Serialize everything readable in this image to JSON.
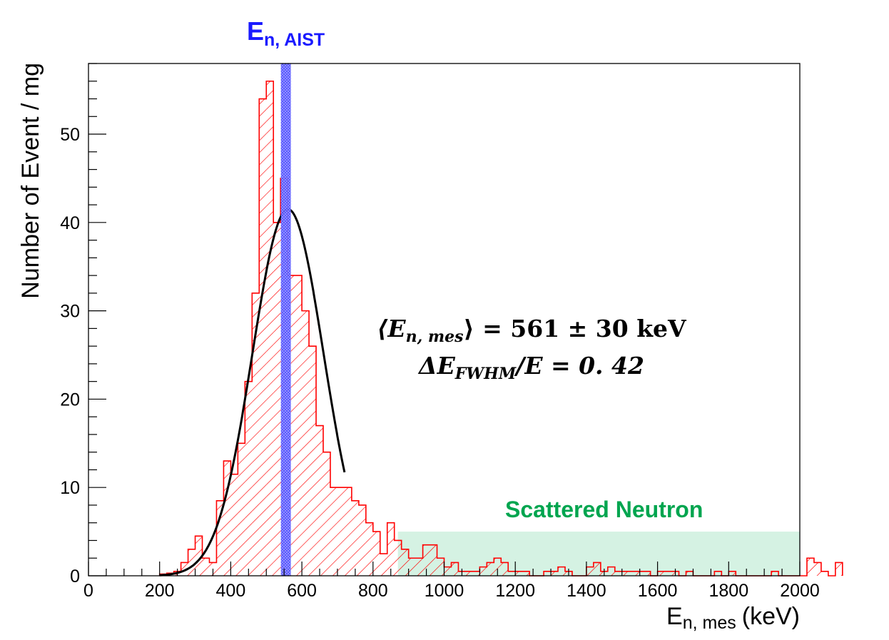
{
  "chart_data": {
    "type": "histogram",
    "xlabel": "E",
    "xlabel_sub": "n, mes",
    "xlabel_unit": "(keV)",
    "ylabel": "Number of Event / mg",
    "xlim": [
      0,
      2000
    ],
    "ylim": [
      0,
      58
    ],
    "x_ticks": [
      0,
      200,
      400,
      600,
      800,
      1000,
      1200,
      1400,
      1600,
      1800,
      2000
    ],
    "y_ticks": [
      0,
      10,
      20,
      30,
      40,
      50
    ],
    "bin_width": 20,
    "bins_start": 200,
    "histogram_values": [
      0.2,
      0.3,
      0.5,
      1.5,
      3,
      4.5,
      2,
      1.5,
      8.5,
      13,
      11.5,
      15,
      22,
      32,
      54,
      56,
      40,
      45,
      34,
      34,
      30,
      26,
      17,
      14,
      10,
      10,
      10,
      8.5,
      8,
      6,
      5,
      2.5,
      6,
      4,
      3,
      2,
      2,
      3.5,
      3.5,
      2,
      1,
      1.5,
      0.5,
      0.5,
      0.5,
      1,
      1.5,
      2,
      1.5,
      0.5,
      0.5,
      0.5,
      0,
      0,
      0.5,
      0.5,
      1,
      0.5,
      0,
      0,
      1,
      1.5,
      0.5,
      1,
      0.5,
      0.5,
      0.5,
      0.5,
      0.5,
      0,
      0.5,
      0.5,
      0.5,
      0,
      0.5,
      0,
      0,
      0,
      0.5,
      0,
      0.5,
      0,
      0,
      0,
      0,
      0,
      0.5,
      0,
      0,
      0,
      0,
      2,
      1.5,
      0.5,
      0,
      1.5
    ],
    "fit_curve": {
      "type": "gaussian",
      "amplitude": 41.5,
      "mean": 561,
      "sigma": 100,
      "x_range": [
        200,
        720
      ]
    },
    "marker_line": {
      "x": 555,
      "width": 20,
      "label": "E",
      "label_sub": "n, AIST",
      "color": "#2e2eff"
    },
    "scattered_region": {
      "x_range": [
        870,
        2000
      ],
      "y_range": [
        0,
        5
      ],
      "label": "Scattered Neutron",
      "color": "#d5f2e3",
      "label_color": "#00a54f"
    },
    "annotation_line1": {
      "lhs": "⟨E",
      "lhs_sub": "n, mes",
      "rhs": "⟩ = 561 ± 30 keV"
    },
    "annotation_line2": {
      "lhs": "ΔE",
      "lhs_sub": "FWHM",
      "rhs": "/E = 0. 42"
    },
    "colors": {
      "histogram": "#ff0000",
      "fit": "#000000",
      "axis": "#000000"
    }
  }
}
